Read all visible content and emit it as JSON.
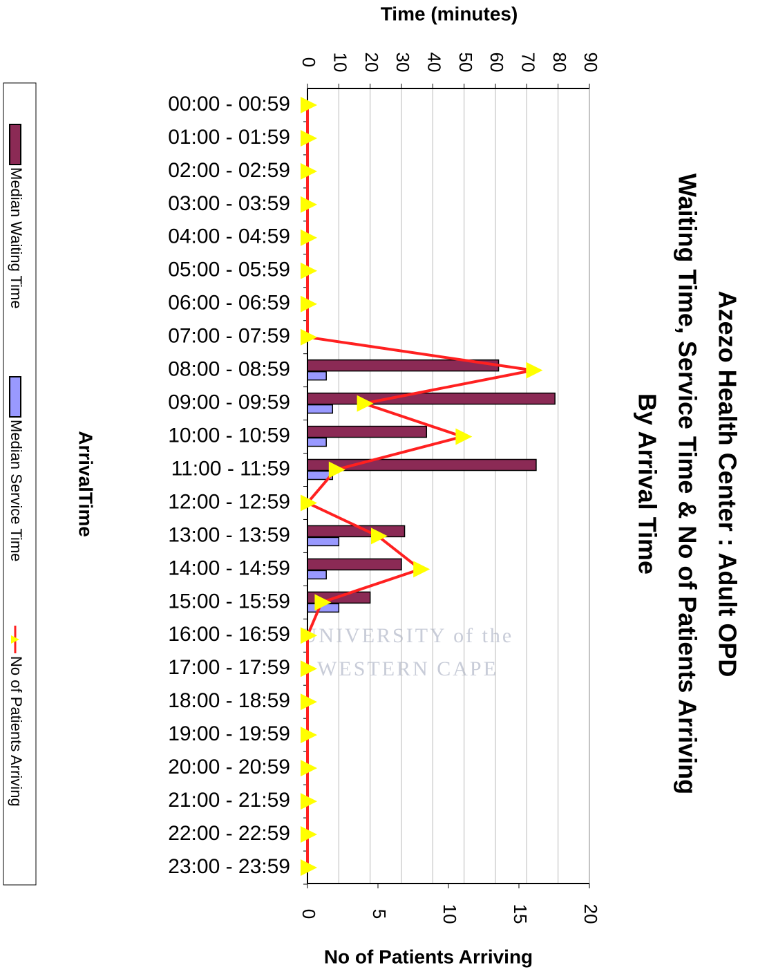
{
  "chart_data": {
    "type": "bar",
    "orientation": "horizontal",
    "title": [
      "Azezo Health Center : Adult OPD",
      "Waiting Time, Service Time & No of Patients Arriving",
      "By Arrival Time"
    ],
    "y_label": "Time (minutes)",
    "y2_label": "No of Patients Arriving",
    "x_label": "ArrivalTime",
    "categories": [
      "00:00 - 00:59",
      "01:00 - 01:59",
      "02:00 - 02:59",
      "03:00 - 03:59",
      "04:00 - 04:59",
      "05:00 - 05:59",
      "06:00 - 06:59",
      "07:00 - 07:59",
      "08:00 - 08:59",
      "09:00 - 09:59",
      "10:00 - 10:59",
      "11:00 - 11:59",
      "12:00 - 12:59",
      "13:00 - 13:59",
      "14:00 - 14:59",
      "15:00 - 15:59",
      "16:00 - 16:59",
      "17:00 - 17:59",
      "18:00 - 18:59",
      "19:00 - 19:59",
      "20:00 - 20:59",
      "21:00 - 21:59",
      "22:00 - 22:59",
      "23:00 - 23:59"
    ],
    "series": [
      {
        "name": "Median Waiting Time",
        "type": "bar",
        "color": "#8b2a55",
        "values": [
          null,
          null,
          null,
          null,
          null,
          null,
          null,
          null,
          61,
          79,
          38,
          73,
          null,
          31,
          30,
          20,
          null,
          null,
          null,
          null,
          null,
          null,
          null,
          null
        ]
      },
      {
        "name": "Median Service Time",
        "type": "bar",
        "color": "#9999ff",
        "values": [
          null,
          null,
          null,
          null,
          null,
          null,
          null,
          null,
          6,
          8,
          6,
          8,
          null,
          10,
          6,
          10,
          null,
          null,
          null,
          null,
          null,
          null,
          null,
          null
        ]
      },
      {
        "name": "No of Patients Arriving",
        "type": "line",
        "axis": "y2",
        "color": "#ff2020",
        "marker_color": "#ffff00",
        "values": [
          0,
          0,
          0,
          0,
          0,
          0,
          0,
          0,
          16,
          4,
          11,
          2,
          0,
          5,
          8,
          1,
          0,
          0,
          0,
          0,
          0,
          0,
          0,
          0
        ]
      }
    ],
    "ylim": [
      0,
      90
    ],
    "yticks": [
      0,
      10,
      20,
      30,
      40,
      50,
      60,
      70,
      80,
      90
    ],
    "y2lim": [
      0,
      20
    ],
    "y2ticks": [
      0,
      5,
      10,
      15,
      20
    ],
    "grid": true,
    "watermark": [
      "UNIVERSITY of the",
      "WESTERN CAPE"
    ]
  }
}
